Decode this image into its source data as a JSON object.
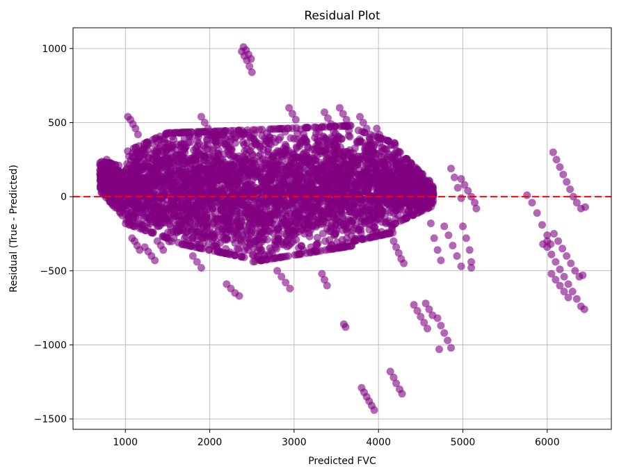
{
  "chart_data": {
    "type": "scatter",
    "title": "Residual Plot",
    "xlabel": "Predicted FVC",
    "ylabel": "Residual (True - Predicted)",
    "xlim": [
      380,
      6760
    ],
    "ylim": [
      -1570,
      1140
    ],
    "xticks": [
      1000,
      2000,
      3000,
      4000,
      5000,
      6000
    ],
    "xtick_labels": [
      "1000",
      "2000",
      "3000",
      "4000",
      "5000",
      "6000"
    ],
    "yticks": [
      -1500,
      -1000,
      -500,
      0,
      500,
      1000
    ],
    "ytick_labels": [
      "−1500",
      "−1000",
      "−500",
      "0",
      "500",
      "1000"
    ],
    "grid": true,
    "point_color": "#800080",
    "point_opacity": 0.6,
    "reference_line": {
      "y": 0,
      "color": "#ff0000",
      "style": "dashed"
    },
    "series": [
      {
        "values": [
          [
            700,
            180
          ],
          [
            740,
            150
          ],
          [
            780,
            110
          ],
          [
            820,
            60
          ],
          [
            860,
            10
          ],
          [
            900,
            -50
          ],
          [
            940,
            -110
          ],
          [
            780,
            250
          ],
          [
            820,
            230
          ],
          [
            860,
            190
          ],
          [
            900,
            150
          ],
          [
            940,
            100
          ],
          [
            980,
            60
          ],
          [
            1000,
            20
          ],
          [
            1030,
            540
          ],
          [
            1060,
            520
          ],
          [
            1090,
            490
          ],
          [
            1120,
            460
          ],
          [
            1150,
            420
          ],
          [
            1080,
            -280
          ],
          [
            1110,
            -300
          ],
          [
            1140,
            -330
          ],
          [
            1170,
            -360
          ],
          [
            1230,
            -340
          ],
          [
            1270,
            -370
          ],
          [
            1310,
            -400
          ],
          [
            1350,
            -430
          ],
          [
            1380,
            -300
          ],
          [
            1420,
            -330
          ],
          [
            1450,
            -360
          ],
          [
            1900,
            540
          ],
          [
            1940,
            500
          ],
          [
            1980,
            460
          ],
          [
            2020,
            420
          ],
          [
            1800,
            -400
          ],
          [
            1850,
            -440
          ],
          [
            1900,
            -480
          ],
          [
            2200,
            -590
          ],
          [
            2250,
            -620
          ],
          [
            2300,
            -650
          ],
          [
            2350,
            -670
          ],
          [
            2380,
            980
          ],
          [
            2410,
            950
          ],
          [
            2440,
            920
          ],
          [
            2470,
            880
          ],
          [
            2500,
            840
          ],
          [
            2400,
            1010
          ],
          [
            2430,
            990
          ],
          [
            2460,
            960
          ],
          [
            2490,
            930
          ],
          [
            2800,
            -500
          ],
          [
            2850,
            -540
          ],
          [
            2900,
            -580
          ],
          [
            2950,
            -620
          ],
          [
            2940,
            600
          ],
          [
            2980,
            560
          ],
          [
            3020,
            520
          ],
          [
            3360,
            570
          ],
          [
            3400,
            530
          ],
          [
            3440,
            490
          ],
          [
            3540,
            600
          ],
          [
            3580,
            560
          ],
          [
            3620,
            520
          ],
          [
            3660,
            480
          ],
          [
            3330,
            -520
          ],
          [
            3360,
            -560
          ],
          [
            3390,
            -600
          ],
          [
            3590,
            -860
          ],
          [
            3610,
            -880
          ],
          [
            3800,
            -1290
          ],
          [
            3830,
            -1320
          ],
          [
            3860,
            -1350
          ],
          [
            3890,
            -1380
          ],
          [
            3920,
            -1410
          ],
          [
            3950,
            -1440
          ],
          [
            3780,
            540
          ],
          [
            3820,
            500
          ],
          [
            3860,
            460
          ],
          [
            3980,
            460
          ],
          [
            4010,
            420
          ],
          [
            4140,
            -1180
          ],
          [
            4180,
            -1220
          ],
          [
            4210,
            -1260
          ],
          [
            4250,
            -1300
          ],
          [
            4280,
            -1330
          ],
          [
            4180,
            -300
          ],
          [
            4210,
            -340
          ],
          [
            4240,
            -380
          ],
          [
            4270,
            -420
          ],
          [
            4300,
            -450
          ],
          [
            4420,
            -730
          ],
          [
            4460,
            -770
          ],
          [
            4500,
            -810
          ],
          [
            4540,
            -850
          ],
          [
            4580,
            -890
          ],
          [
            4560,
            -720
          ],
          [
            4600,
            -760
          ],
          [
            4640,
            -800
          ],
          [
            4700,
            -820
          ],
          [
            4740,
            -870
          ],
          [
            4780,
            -920
          ],
          [
            4820,
            -970
          ],
          [
            4860,
            -1020
          ],
          [
            4720,
            -1030
          ],
          [
            4860,
            190
          ],
          [
            4900,
            130
          ],
          [
            4940,
            60
          ],
          [
            4980,
            -10
          ],
          [
            4780,
            -200
          ],
          [
            4830,
            -260
          ],
          [
            4880,
            -330
          ],
          [
            4930,
            -400
          ],
          [
            4980,
            -470
          ],
          [
            5000,
            -200
          ],
          [
            5040,
            -280
          ],
          [
            5080,
            -360
          ],
          [
            5100,
            -440
          ],
          [
            5100,
            -480
          ],
          [
            4980,
            120
          ],
          [
            5020,
            80
          ],
          [
            5060,
            40
          ],
          [
            5100,
            0
          ],
          [
            5140,
            -40
          ],
          [
            5160,
            -80
          ],
          [
            4620,
            -180
          ],
          [
            4660,
            -280
          ],
          [
            4700,
            -360
          ],
          [
            4740,
            -430
          ],
          [
            5760,
            10
          ],
          [
            5820,
            -40
          ],
          [
            5880,
            -110
          ],
          [
            5940,
            -190
          ],
          [
            6000,
            -260
          ],
          [
            6040,
            -320
          ],
          [
            6070,
            300
          ],
          [
            6110,
            250
          ],
          [
            6150,
            200
          ],
          [
            6190,
            150
          ],
          [
            6230,
            100
          ],
          [
            6270,
            50
          ],
          [
            6310,
            0
          ],
          [
            6350,
            -40
          ],
          [
            6400,
            -80
          ],
          [
            6450,
            -70
          ],
          [
            5950,
            -320
          ],
          [
            6000,
            -300
          ],
          [
            6000,
            -340
          ],
          [
            6050,
            -390
          ],
          [
            6100,
            -440
          ],
          [
            6150,
            -490
          ],
          [
            6200,
            -540
          ],
          [
            6250,
            -590
          ],
          [
            6300,
            -640
          ],
          [
            6350,
            -690
          ],
          [
            6400,
            -740
          ],
          [
            6440,
            -760
          ],
          [
            6080,
            -250
          ],
          [
            6130,
            -300
          ],
          [
            6180,
            -350
          ],
          [
            6230,
            -400
          ],
          [
            6280,
            -450
          ],
          [
            6330,
            -500
          ],
          [
            6380,
            -540
          ],
          [
            6420,
            -530
          ],
          [
            6050,
            -520
          ],
          [
            6100,
            -560
          ],
          [
            6150,
            -600
          ],
          [
            6200,
            -640
          ],
          [
            6250,
            -680
          ]
        ]
      }
    ]
  }
}
